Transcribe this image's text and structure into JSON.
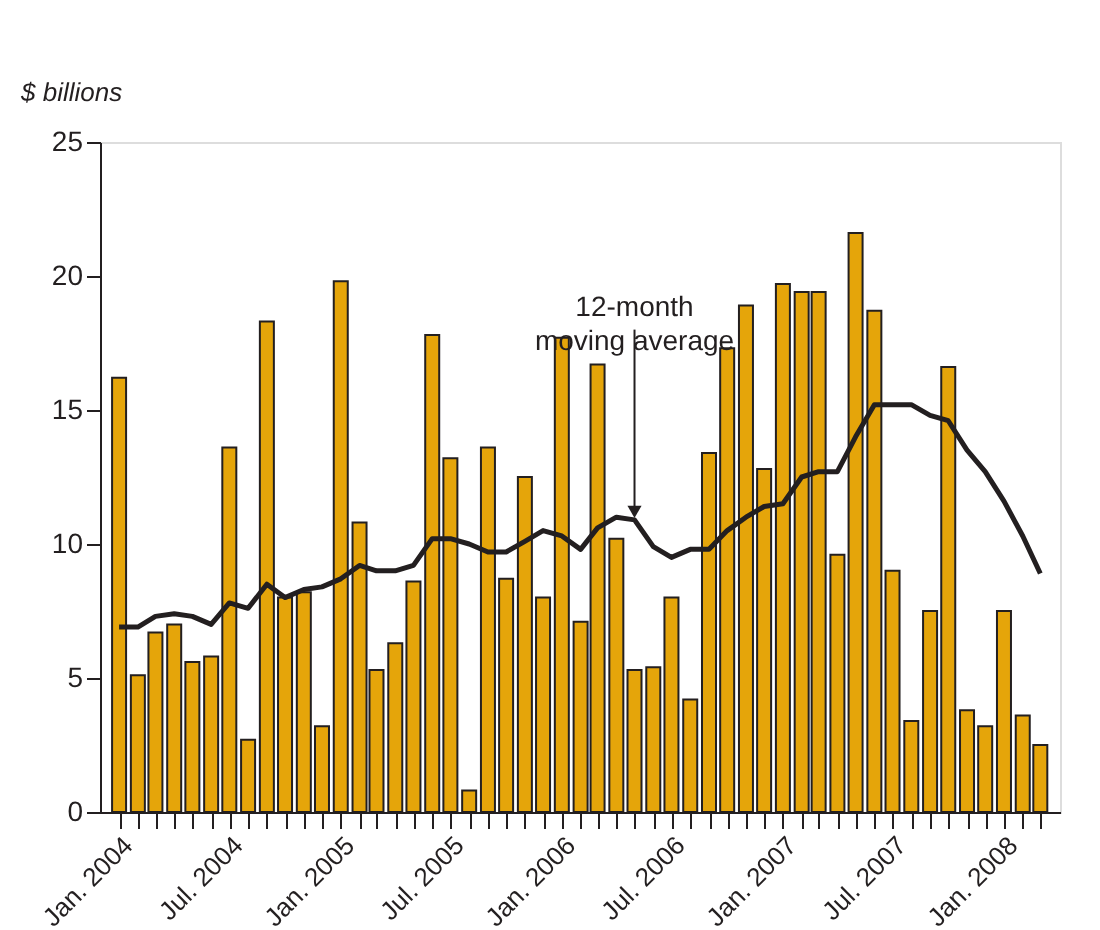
{
  "chart_data": {
    "type": "bar",
    "ylabel": "$ billions",
    "x": [
      "2004-01",
      "2004-02",
      "2004-03",
      "2004-04",
      "2004-05",
      "2004-06",
      "2004-07",
      "2004-08",
      "2004-09",
      "2004-10",
      "2004-11",
      "2004-12",
      "2005-01",
      "2005-02",
      "2005-03",
      "2005-04",
      "2005-05",
      "2005-06",
      "2005-07",
      "2005-08",
      "2005-09",
      "2005-10",
      "2005-11",
      "2005-12",
      "2006-01",
      "2006-02",
      "2006-03",
      "2006-04",
      "2006-05",
      "2006-06",
      "2006-07",
      "2006-08",
      "2006-09",
      "2006-10",
      "2006-11",
      "2006-12",
      "2007-01",
      "2007-02",
      "2007-03",
      "2007-04",
      "2007-05",
      "2007-06",
      "2007-07",
      "2007-08",
      "2007-09",
      "2007-10",
      "2007-11",
      "2007-12",
      "2008-01",
      "2008-02",
      "2008-03"
    ],
    "series": [
      {
        "color": "#e5a50a",
        "values": [
          16.2,
          5.1,
          6.7,
          7.0,
          5.6,
          5.8,
          13.6,
          2.7,
          18.3,
          8.0,
          8.2,
          3.2,
          19.8,
          10.8,
          5.3,
          6.3,
          8.6,
          17.8,
          13.2,
          0.8,
          13.6,
          8.7,
          12.5,
          8.0,
          17.7,
          7.1,
          16.7,
          10.2,
          5.3,
          5.4,
          8.0,
          4.2,
          13.4,
          17.3,
          18.9,
          12.8,
          19.7,
          19.4,
          19.4,
          9.6,
          21.6,
          18.7,
          9.0,
          3.4,
          7.5,
          16.6,
          3.8,
          3.2,
          7.5,
          3.6,
          2.5
        ]
      },
      {
        "type": "line",
        "color": "#231f20",
        "values": [
          6.9,
          6.9,
          7.3,
          7.4,
          7.3,
          7.0,
          7.8,
          7.6,
          8.5,
          8.0,
          8.3,
          8.4,
          8.7,
          9.2,
          9.0,
          9.0,
          9.2,
          10.2,
          10.2,
          10.0,
          9.7,
          9.7,
          10.1,
          10.5,
          10.3,
          9.8,
          10.6,
          11.0,
          10.9,
          9.9,
          9.5,
          9.8,
          9.8,
          10.5,
          11.0,
          11.4,
          11.5,
          12.5,
          12.7,
          12.7,
          14.0,
          15.2,
          15.2,
          15.2,
          14.8,
          14.6,
          13.5,
          12.7,
          11.6,
          10.3,
          8.9
        ]
      }
    ],
    "xlim": [
      "2003-12-17",
      "2008-03-17"
    ],
    "xticks": [
      {
        "value": "2004-01",
        "label": "Jan. 2004"
      },
      {
        "value": "2004-02",
        "label": null
      },
      {
        "value": "2004-03",
        "label": null
      },
      {
        "value": "2004-04",
        "label": null
      },
      {
        "value": "2004-05",
        "label": null
      },
      {
        "value": "2004-06",
        "label": null
      },
      {
        "value": "2004-07",
        "label": "Jul. 2004"
      },
      {
        "value": "2004-08",
        "label": null
      },
      {
        "value": "2004-09",
        "label": null
      },
      {
        "value": "2004-10",
        "label": null
      },
      {
        "value": "2004-11",
        "label": null
      },
      {
        "value": "2004-12",
        "label": null
      },
      {
        "value": "2005-01",
        "label": "Jan. 2005"
      },
      {
        "value": "2005-02",
        "label": null
      },
      {
        "value": "2005-03",
        "label": null
      },
      {
        "value": "2005-04",
        "label": null
      },
      {
        "value": "2005-05",
        "label": null
      },
      {
        "value": "2005-06",
        "label": null
      },
      {
        "value": "2005-07",
        "label": "Jul. 2005"
      },
      {
        "value": "2005-08",
        "label": null
      },
      {
        "value": "2005-09",
        "label": null
      },
      {
        "value": "2005-10",
        "label": null
      },
      {
        "value": "2005-11",
        "label": null
      },
      {
        "value": "2005-12",
        "label": null
      },
      {
        "value": "2006-01",
        "label": "Jan. 2006"
      },
      {
        "value": "2006-02",
        "label": null
      },
      {
        "value": "2006-03",
        "label": null
      },
      {
        "value": "2006-04",
        "label": null
      },
      {
        "value": "2006-05",
        "label": null
      },
      {
        "value": "2006-06",
        "label": null
      },
      {
        "value": "2006-07",
        "label": "Jul. 2006"
      },
      {
        "value": "2006-08",
        "label": null
      },
      {
        "value": "2006-09",
        "label": null
      },
      {
        "value": "2006-10",
        "label": null
      },
      {
        "value": "2006-11",
        "label": null
      },
      {
        "value": "2006-12",
        "label": null
      },
      {
        "value": "2007-01",
        "label": "Jan. 2007"
      },
      {
        "value": "2007-02",
        "label": null
      },
      {
        "value": "2007-03",
        "label": null
      },
      {
        "value": "2007-04",
        "label": null
      },
      {
        "value": "2007-05",
        "label": null
      },
      {
        "value": "2007-06",
        "label": null
      },
      {
        "value": "2007-07",
        "label": "Jul. 2007"
      },
      {
        "value": "2007-08",
        "label": null
      },
      {
        "value": "2007-09",
        "label": null
      },
      {
        "value": "2007-10",
        "label": null
      },
      {
        "value": "2007-11",
        "label": null
      },
      {
        "value": "2007-12",
        "label": null
      },
      {
        "value": "2008-01",
        "label": "Jan. 2008"
      },
      {
        "value": "2008-02",
        "label": null
      },
      {
        "value": "2008-03",
        "label": null
      }
    ],
    "ylim": [
      0,
      25
    ],
    "yticks": [
      0,
      5,
      10,
      15,
      20,
      25
    ],
    "grid": false,
    "legend": false,
    "marker": "none",
    "line_style": "solid",
    "annotations": [
      {
        "text": "12-month\nmoving average",
        "x": "2006-05",
        "y": 10.9
      }
    ]
  }
}
